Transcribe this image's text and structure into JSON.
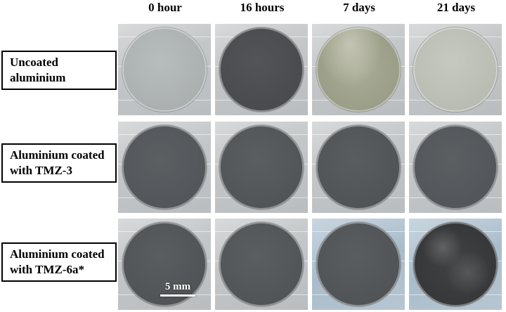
{
  "columns": [
    "0 hour",
    "16 hours",
    "7 days",
    "21 days"
  ],
  "rows": [
    {
      "label_line1": "Uncoated",
      "label_line2": "aluminium",
      "discs": [
        {
          "color": "#b7bcbc",
          "edge": "#a7acad",
          "texture": "light"
        },
        {
          "color": "#525457",
          "edge": "#46484b",
          "texture": "dark"
        },
        {
          "color": "#a9ac96",
          "edge": "#969983",
          "texture": "stained"
        },
        {
          "color": "#c5c9c0",
          "edge": "#b4b8ae",
          "texture": "light"
        }
      ]
    },
    {
      "label_line1": "Aluminium coated",
      "label_line2": "with TMZ-3",
      "discs": [
        {
          "color": "#5c5f62",
          "edge": "#505357",
          "texture": "dark"
        },
        {
          "color": "#5b5e61",
          "edge": "#4f5255",
          "texture": "dark"
        },
        {
          "color": "#5a5d60",
          "edge": "#4e5154",
          "texture": "dark"
        },
        {
          "color": "#5c5f62",
          "edge": "#505357",
          "texture": "dark"
        }
      ]
    },
    {
      "label_line1": "Aluminium coated",
      "label_line2": "with TMZ-6a*",
      "discs": [
        {
          "color": "#5a5d60",
          "edge": "#4e5154",
          "texture": "dark"
        },
        {
          "color": "#5b5e61",
          "edge": "#4f5255",
          "texture": "dark"
        },
        {
          "color": "#5a5d60",
          "edge": "#4e5154",
          "texture": "dark"
        },
        {
          "color": "#3f4143",
          "edge": "#333537",
          "texture": "corroded"
        }
      ]
    }
  ],
  "scale_bar": {
    "label": "5 mm"
  }
}
